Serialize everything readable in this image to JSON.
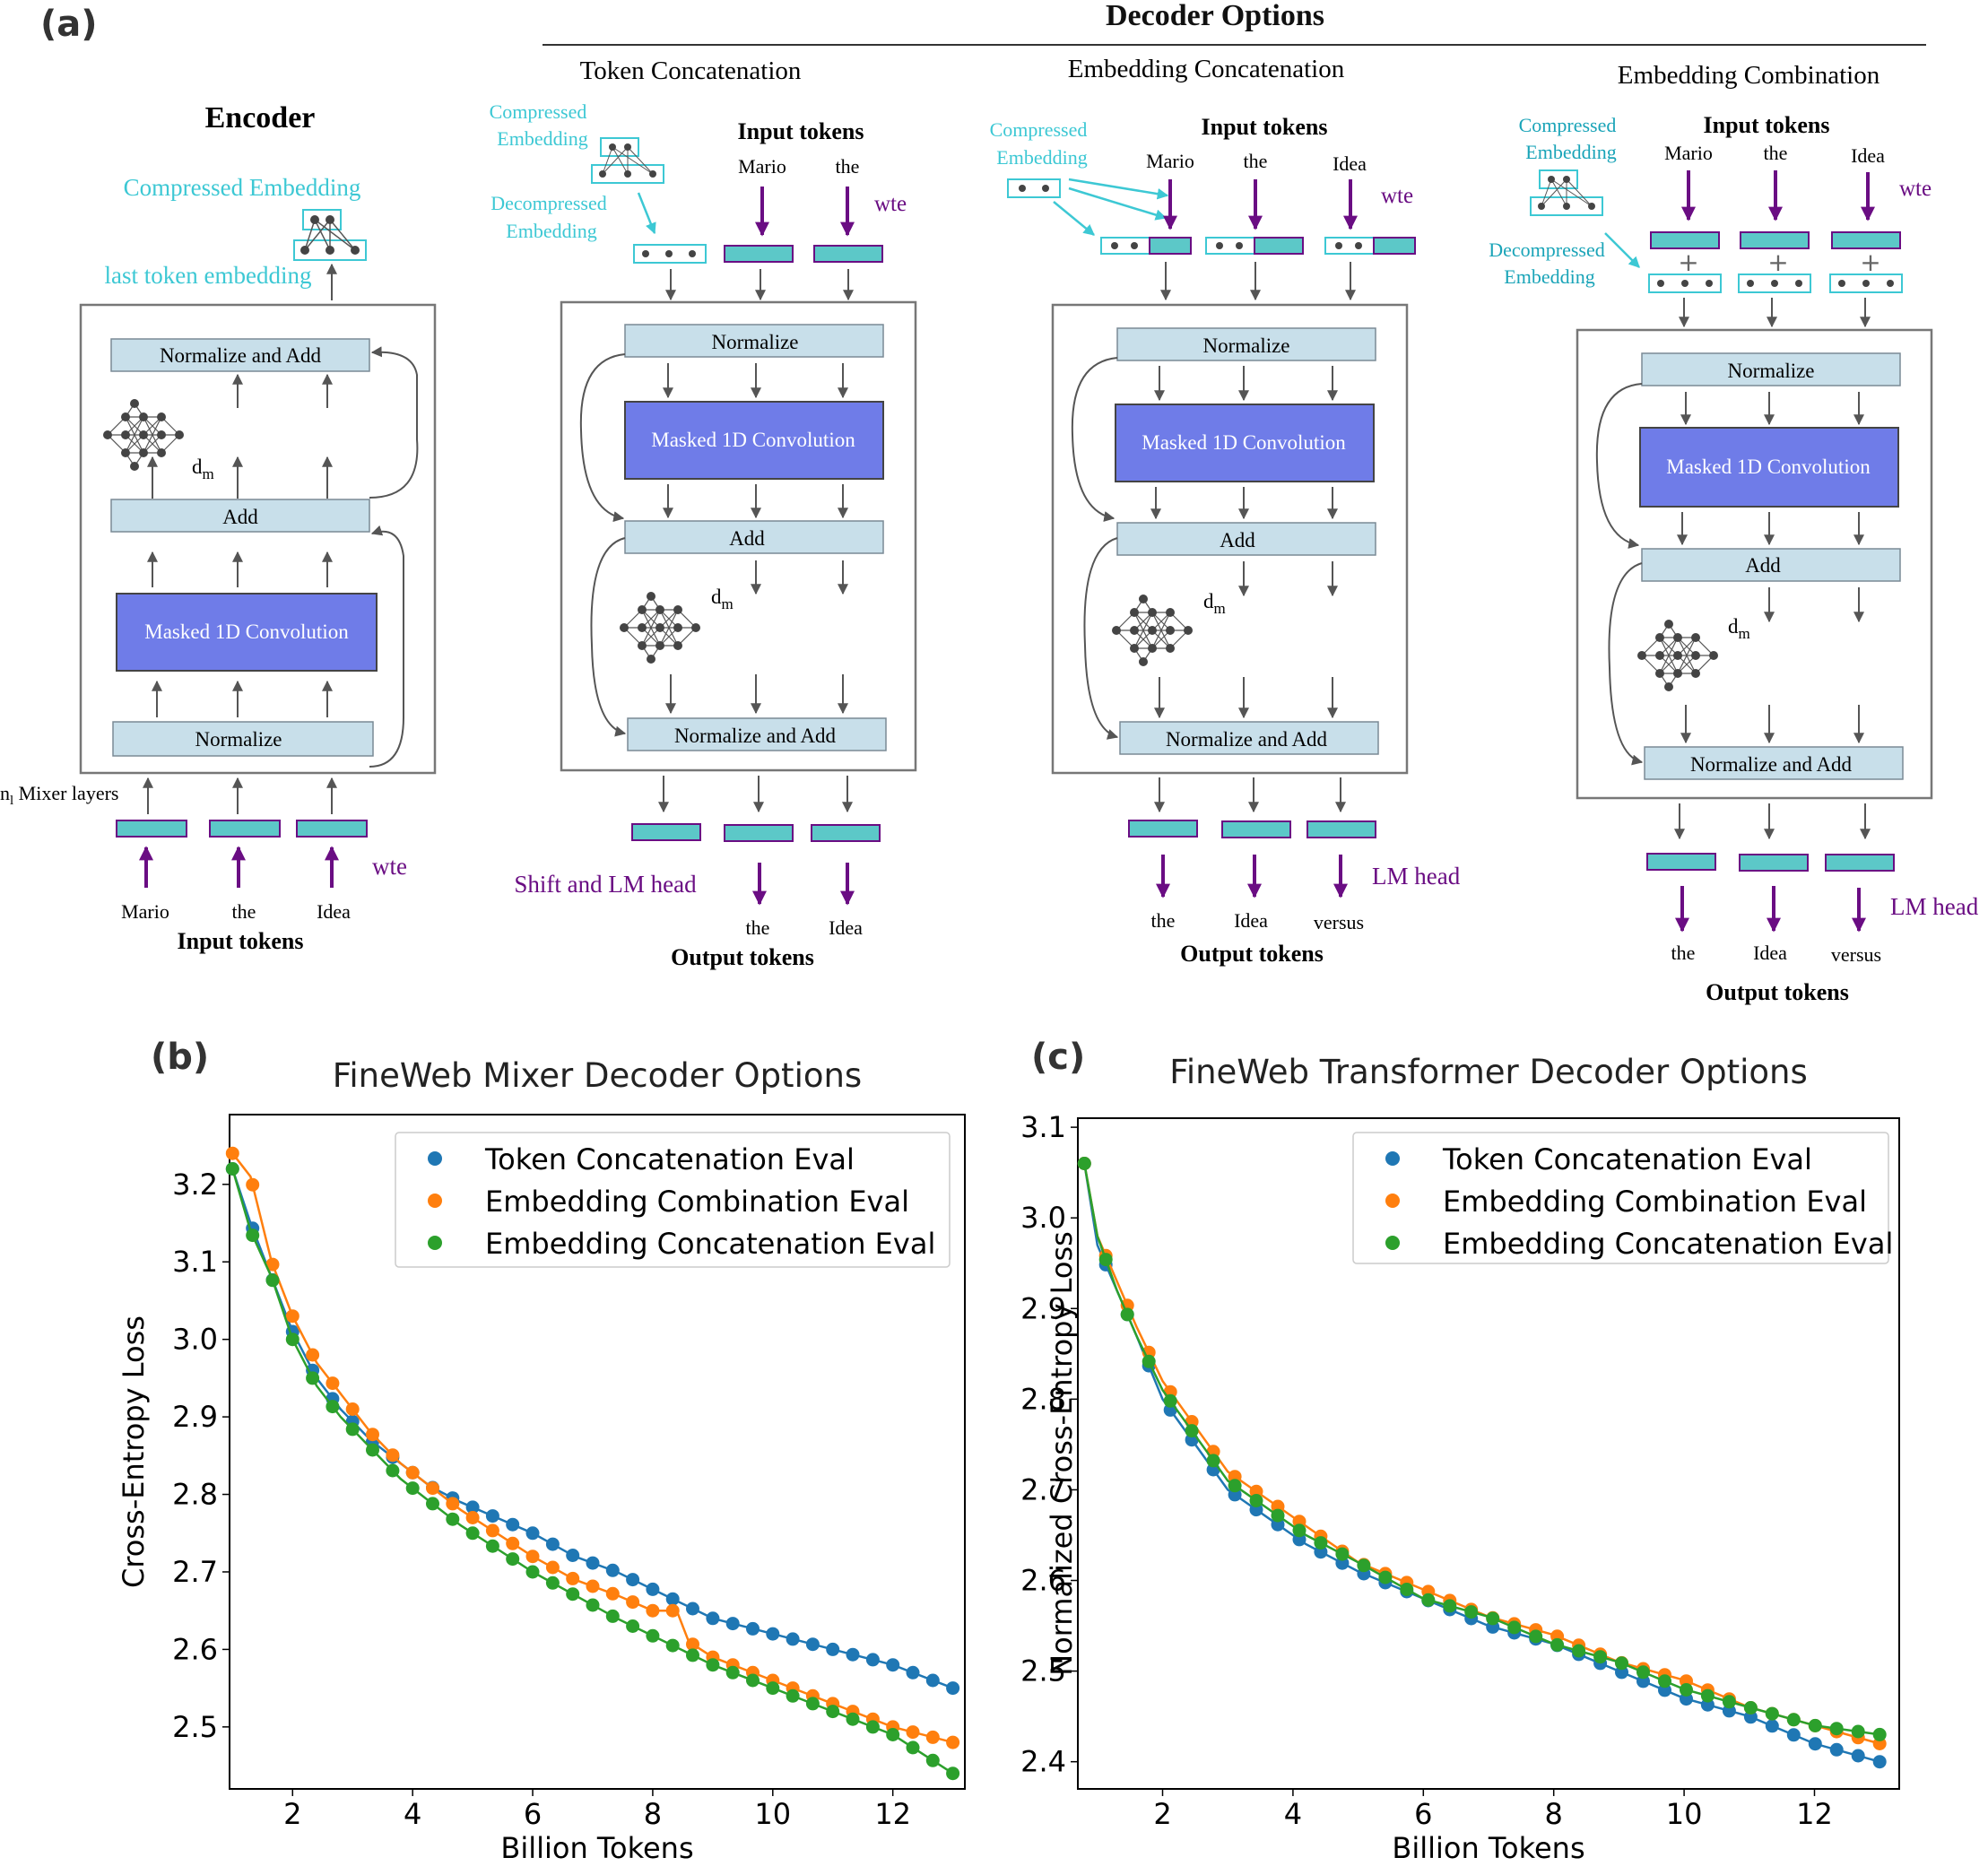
{
  "colors": {
    "teal": "#3dc8d4",
    "purple": "#6a0d83",
    "lightblue": "#c8dfea",
    "conv": "#6f7ce8",
    "blue_series": "#1f77b4",
    "orange_series": "#ff7f0e",
    "green_series": "#2ca02c"
  },
  "panel_a": {
    "label": "(a)",
    "decoder_options_title": "Decoder Options",
    "encoder": {
      "title": "Encoder",
      "compressed_embedding": "Compressed Embedding",
      "last_token_embedding": "last token embedding",
      "normalize_add": "Normalize and Add",
      "dm": "d",
      "dm_sub": "m",
      "add": "Add",
      "conv": "Masked 1D Convolution",
      "normalize": "Normalize",
      "mixer_layers_n": "n",
      "mixer_layers_sub": "l",
      "mixer_layers": " Mixer layers",
      "wte": "wte",
      "tokens": [
        "Mario",
        "the",
        "Idea"
      ],
      "input_tokens": "Input tokens"
    },
    "token_concat": {
      "title": "Token Concatenation",
      "compressed_embedding": [
        "Compressed",
        "Embedding"
      ],
      "decompressed_embedding": [
        "Decompressed",
        "Embedding"
      ],
      "input_tokens": "Input tokens",
      "tokens": [
        "Mario",
        "the"
      ],
      "wte": "wte",
      "normalize": "Normalize",
      "conv": "Masked 1D Convolution",
      "add": "Add",
      "dm": "d",
      "dm_sub": "m",
      "normalize_add": "Normalize and Add",
      "head": "Shift and LM head",
      "outputs": [
        "the",
        "Idea"
      ],
      "output_tokens": "Output tokens"
    },
    "embed_concat": {
      "title": "Embedding Concatenation",
      "compressed_embedding": [
        "Compressed",
        "Embedding"
      ],
      "input_tokens": "Input tokens",
      "tokens": [
        "Mario",
        "the",
        "Idea"
      ],
      "wte": "wte",
      "normalize": "Normalize",
      "conv": "Masked 1D Convolution",
      "add": "Add",
      "dm": "d",
      "dm_sub": "m",
      "normalize_add": "Normalize and Add",
      "head": "LM head",
      "outputs": [
        "the",
        "Idea",
        "versus"
      ],
      "output_tokens": "Output tokens"
    },
    "embed_comb": {
      "title": "Embedding Combination",
      "compressed_embedding": [
        "Compressed",
        "Embedding"
      ],
      "decompressed_embedding": [
        "Decompressed",
        "Embedding"
      ],
      "input_tokens": "Input tokens",
      "tokens": [
        "Mario",
        "the",
        "Idea"
      ],
      "wte": "wte",
      "plus": "+",
      "normalize": "Normalize",
      "conv": "Masked 1D Convolution",
      "add": "Add",
      "dm": "d",
      "dm_sub": "m",
      "normalize_add": "Normalize and Add",
      "head": "LM head",
      "outputs": [
        "the",
        "Idea",
        "versus"
      ],
      "output_tokens": "Output tokens"
    }
  },
  "chart_data": [
    {
      "panel_label": "(b)",
      "type": "line",
      "title": "FineWeb Mixer Decoder Options",
      "xlabel": "Billion Tokens",
      "ylabel": "Cross-Entropy Loss",
      "xlim": [
        0.95,
        13.2
      ],
      "ylim": [
        2.42,
        3.29
      ],
      "xticks": [
        2,
        4,
        6,
        8,
        10,
        12
      ],
      "yticks": [
        2.5,
        2.6,
        2.7,
        2.8,
        2.9,
        3.0,
        3.1,
        3.2
      ],
      "legend_position": "top-right",
      "series": [
        {
          "name": "Token Concatenation Eval",
          "color": "#1f77b4",
          "x": [
            1.0,
            1.3,
            1.65,
            2.0,
            2.4,
            2.8,
            3.3,
            3.8,
            4.3,
            4.8,
            5.4,
            6.0,
            6.7,
            7.4,
            8.2,
            9.0,
            10.0,
            11.0,
            12.0,
            13.0
          ],
          "y": [
            3.22,
            3.15,
            3.08,
            3.01,
            2.95,
            2.91,
            2.87,
            2.84,
            2.81,
            2.79,
            2.77,
            2.75,
            2.72,
            2.7,
            2.67,
            2.64,
            2.62,
            2.6,
            2.58,
            2.55
          ]
        },
        {
          "name": "Embedding Combination Eval",
          "color": "#ff7f0e",
          "x": [
            1.0,
            1.3,
            1.65,
            2.0,
            2.4,
            2.8,
            3.3,
            3.8,
            4.3,
            4.8,
            5.4,
            6.0,
            6.7,
            7.4,
            8.0,
            8.4,
            8.6,
            9.0,
            10.0,
            11.0,
            12.0,
            13.0
          ],
          "y": [
            3.24,
            3.21,
            3.1,
            3.03,
            2.97,
            2.93,
            2.88,
            2.84,
            2.81,
            2.78,
            2.75,
            2.72,
            2.69,
            2.67,
            2.65,
            2.65,
            2.61,
            2.59,
            2.56,
            2.53,
            2.5,
            2.48
          ]
        },
        {
          "name": "Embedding Concatenation Eval",
          "color": "#2ca02c",
          "x": [
            1.0,
            1.3,
            1.65,
            2.0,
            2.4,
            2.8,
            3.3,
            3.8,
            4.3,
            4.8,
            5.4,
            6.0,
            6.7,
            7.4,
            8.2,
            9.0,
            10.0,
            11.0,
            12.0,
            13.0
          ],
          "y": [
            3.22,
            3.14,
            3.08,
            3.0,
            2.94,
            2.9,
            2.86,
            2.82,
            2.79,
            2.76,
            2.73,
            2.7,
            2.67,
            2.64,
            2.61,
            2.58,
            2.55,
            2.52,
            2.49,
            2.44
          ]
        }
      ]
    },
    {
      "panel_label": "(c)",
      "type": "line",
      "title": "FineWeb Transformer Decoder Options",
      "xlabel": "Billion Tokens",
      "ylabel": "Normalized Cross-Entropy Loss",
      "xlim": [
        0.7,
        13.3
      ],
      "ylim": [
        2.37,
        3.11
      ],
      "xticks": [
        2,
        4,
        6,
        8,
        10,
        12
      ],
      "yticks": [
        2.4,
        2.5,
        2.6,
        2.7,
        2.8,
        2.9,
        3.0,
        3.1
      ],
      "legend_position": "top-right",
      "series": [
        {
          "name": "Token Concatenation Eval",
          "color": "#1f77b4",
          "x": [
            0.8,
            1.0,
            1.3,
            1.6,
            2.0,
            2.5,
            3.0,
            3.6,
            4.2,
            5.0,
            6.0,
            7.0,
            8.0,
            9.0,
            10.0,
            11.0,
            12.0,
            13.0
          ],
          "y": [
            3.06,
            2.97,
            2.92,
            2.87,
            2.8,
            2.75,
            2.7,
            2.67,
            2.64,
            2.61,
            2.58,
            2.55,
            2.53,
            2.5,
            2.47,
            2.45,
            2.42,
            2.4
          ]
        },
        {
          "name": "Embedding Combination Eval",
          "color": "#ff7f0e",
          "x": [
            0.8,
            1.0,
            1.3,
            1.6,
            2.0,
            2.5,
            3.0,
            3.6,
            4.2,
            5.0,
            6.0,
            7.0,
            8.0,
            9.0,
            10.0,
            11.0,
            12.0,
            13.0
          ],
          "y": [
            3.06,
            2.98,
            2.93,
            2.88,
            2.82,
            2.77,
            2.72,
            2.69,
            2.66,
            2.62,
            2.59,
            2.56,
            2.54,
            2.51,
            2.49,
            2.46,
            2.44,
            2.42
          ]
        },
        {
          "name": "Embedding Concatenation Eval",
          "color": "#2ca02c",
          "x": [
            0.8,
            1.0,
            1.3,
            1.6,
            2.0,
            2.5,
            3.0,
            3.6,
            4.2,
            5.0,
            6.0,
            7.0,
            8.0,
            9.0,
            10.0,
            11.0,
            12.0,
            13.0
          ],
          "y": [
            3.06,
            2.98,
            2.92,
            2.87,
            2.81,
            2.76,
            2.71,
            2.68,
            2.65,
            2.62,
            2.58,
            2.56,
            2.53,
            2.51,
            2.48,
            2.46,
            2.44,
            2.43
          ]
        }
      ]
    }
  ]
}
